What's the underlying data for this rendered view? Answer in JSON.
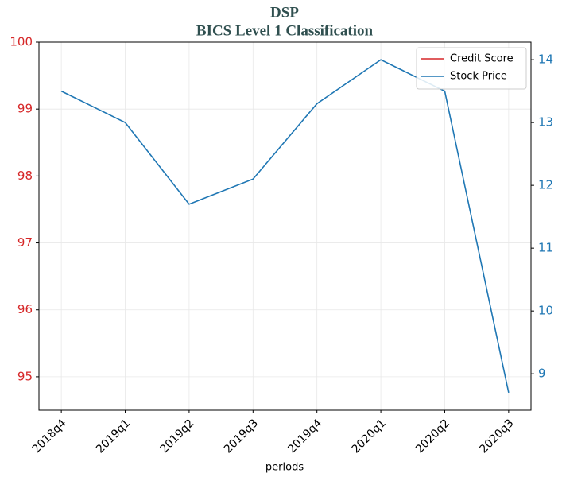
{
  "chart_data": {
    "type": "line",
    "title": "DSP",
    "subtitle": "BICS Level 1 Classification",
    "x_label": "periods",
    "categories": [
      "2018q4",
      "2019q1",
      "2019q2",
      "2019q3",
      "2019q4",
      "2020q1",
      "2020q2",
      "2020q3"
    ],
    "series": [
      {
        "name": "Credit Score",
        "color": "#d62728",
        "values": [
          null,
          null,
          null,
          null,
          null,
          null,
          null,
          null
        ]
      },
      {
        "name": "Stock Price",
        "color": "#1f77b4",
        "axis": "y2",
        "values": [
          13.5,
          13.0,
          11.7,
          12.1,
          13.3,
          14.0,
          13.5,
          8.7
        ]
      }
    ],
    "ylim": [
      94.5,
      100
    ],
    "yticks": [
      95,
      96,
      97,
      98,
      99,
      100
    ],
    "y2lim": [
      8.42,
      14.28
    ],
    "y2ticks": [
      9,
      10,
      11,
      12,
      13,
      14
    ],
    "ytick_color": "#d62728",
    "y2tick_color": "#1f77b4",
    "grid": true,
    "legend": "upper right"
  }
}
